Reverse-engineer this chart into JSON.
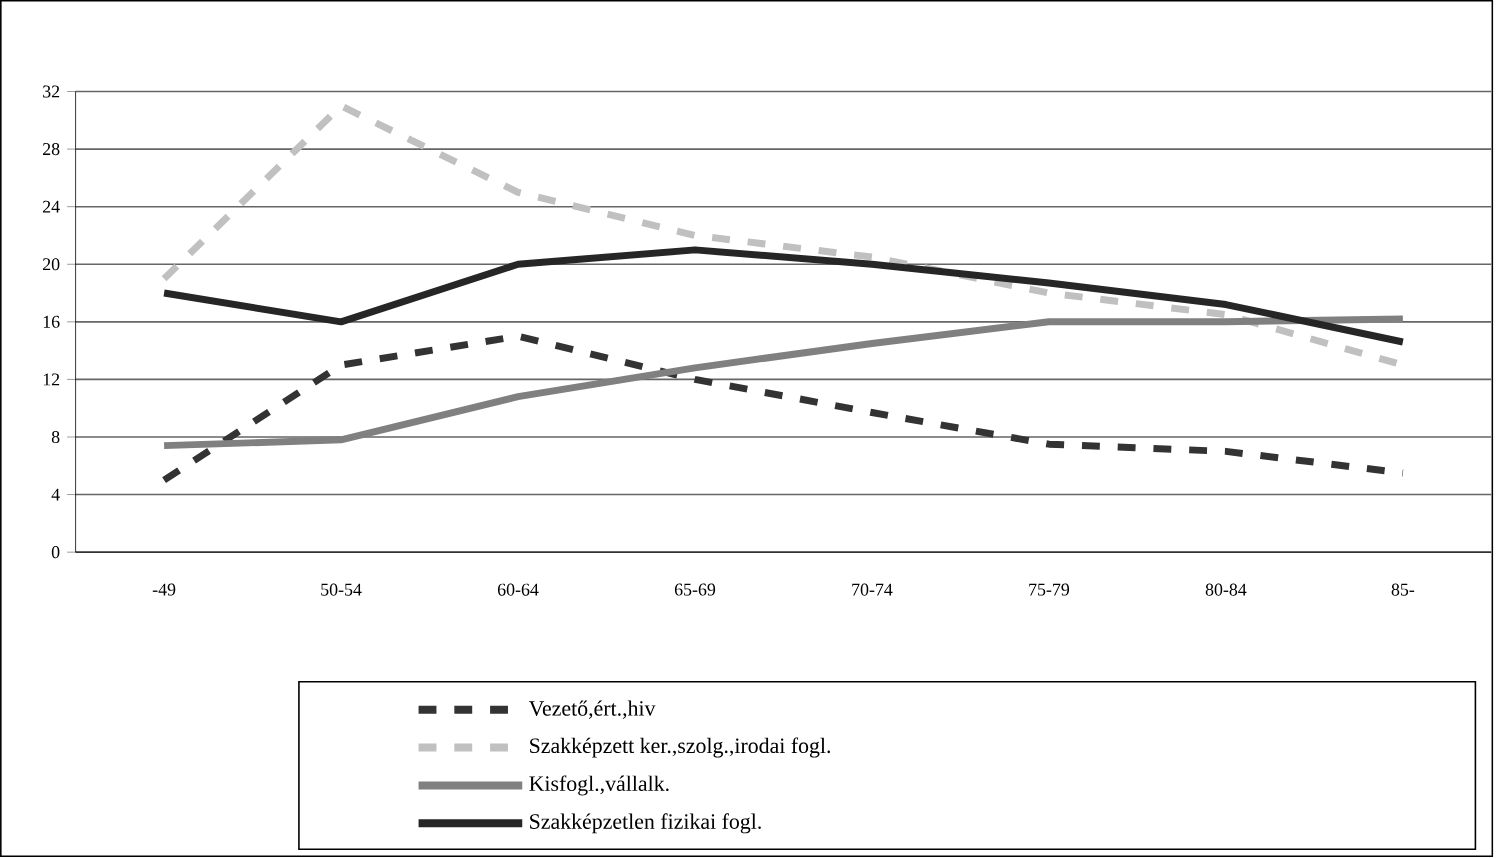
{
  "chart_data": {
    "type": "line",
    "categories": [
      "-49",
      "50-54",
      "60-64",
      "65-69",
      "70-74",
      "75-79",
      "80-84",
      "85-"
    ],
    "series": [
      {
        "name": "Vezető,ért.,hiv",
        "color": "#333333",
        "line_style": "dashed",
        "values": [
          5,
          13,
          15,
          12,
          9.7,
          7.5,
          7,
          5.5
        ]
      },
      {
        "name": "Szakképzett ker.,szolg.,irodai fogl.",
        "color": "#c0c0c0",
        "line_style": "dashed",
        "values": [
          19,
          31,
          25,
          22,
          20.5,
          18,
          16.5,
          13
        ]
      },
      {
        "name": "Kisfogl.,vállalk.",
        "color": "#808080",
        "line_style": "solid",
        "values": [
          7.4,
          7.8,
          10.8,
          12.8,
          14.5,
          16,
          16,
          16.2
        ]
      },
      {
        "name": "Szakképzetlen fizikai fogl.",
        "color": "#262626",
        "line_style": "solid",
        "values": [
          18,
          16,
          20,
          21,
          20,
          18.7,
          17.2,
          14.6
        ]
      }
    ],
    "ylim": [
      0,
      32
    ],
    "yticks": [
      0,
      4,
      8,
      12,
      16,
      20,
      24,
      28,
      32
    ],
    "grid": "y",
    "legend": "bottom"
  }
}
